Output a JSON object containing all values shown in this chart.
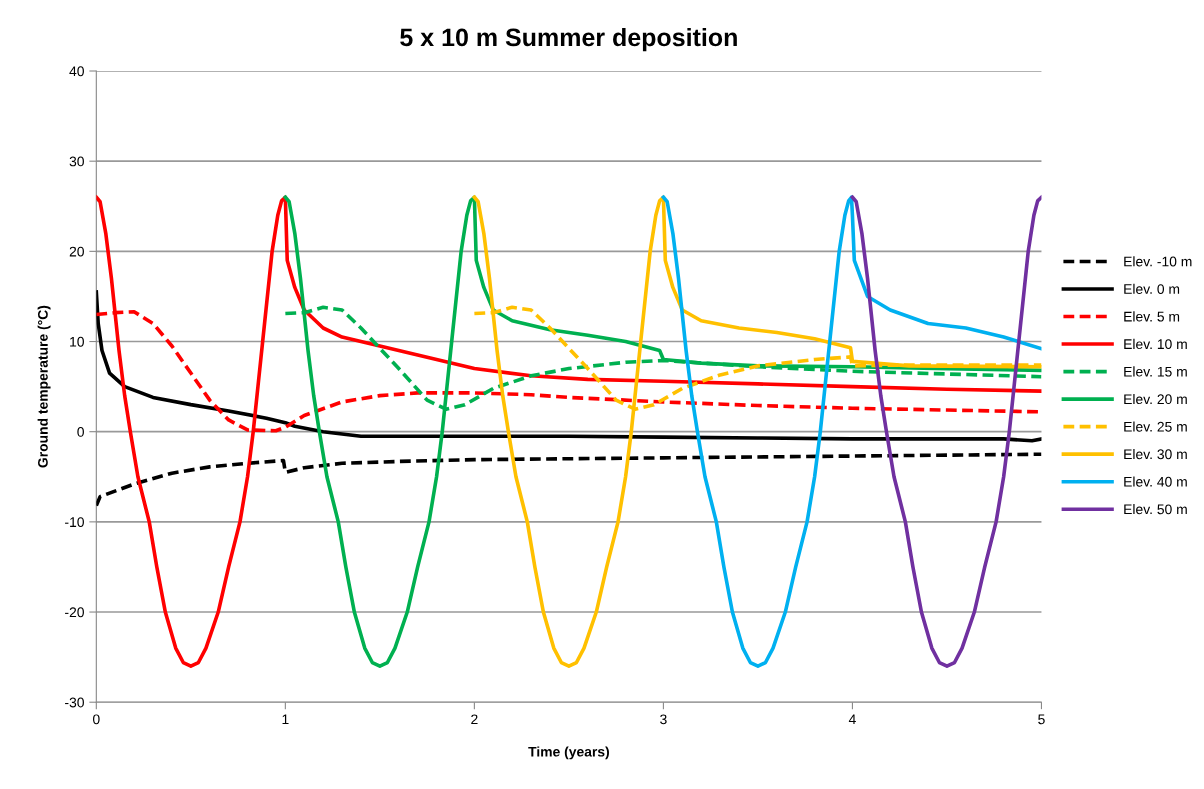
{
  "chart_data": {
    "type": "line",
    "title": "5 x 10 m Summer deposition",
    "xlabel": "Time (years)",
    "ylabel": "Ground temperature (°C)",
    "xlim": [
      0,
      5
    ],
    "xticks": [
      0,
      1,
      2,
      3,
      4,
      5
    ],
    "ylim": [
      -30,
      40
    ],
    "yticks": [
      -30,
      -20,
      -10,
      0,
      10,
      20,
      30,
      40
    ],
    "grid": "y",
    "legend": "right",
    "marker": "none",
    "series": [
      {
        "name": "Elev. -10 m",
        "color": "#000000",
        "line_style": "dashed",
        "x": [
          0,
          0.02,
          0.2,
          0.4,
          0.6,
          0.8,
          0.99,
          1.0,
          1.1,
          1.3,
          1.6,
          2,
          3,
          4,
          5
        ],
        "values": [
          -8.2,
          -7.2,
          -5.8,
          -4.6,
          -3.9,
          -3.5,
          -3.2,
          -4.5,
          -4,
          -3.5,
          -3.3,
          -3.1,
          -2.9,
          -2.7,
          -2.5
        ]
      },
      {
        "name": "Elev. 0 m",
        "color": "#000000",
        "line_style": "solid",
        "x": [
          0,
          0.01,
          0.03,
          0.07,
          0.15,
          0.3,
          0.5,
          0.7,
          0.9,
          1.0,
          1.05,
          1.2,
          1.4,
          2,
          2.5,
          3,
          3.5,
          4,
          4.8,
          4.95,
          5
        ],
        "values": [
          15.5,
          12,
          9,
          6.5,
          5,
          3.8,
          3,
          2.3,
          1.5,
          1,
          0.6,
          0,
          -0.5,
          -0.5,
          -0.5,
          -0.6,
          -0.7,
          -0.8,
          -0.8,
          -1,
          -0.8
        ]
      },
      {
        "name": "Elev. 5 m",
        "color": "#ff0000",
        "line_style": "dashed",
        "x": [
          0,
          0.1,
          0.2,
          0.3,
          0.4,
          0.5,
          0.6,
          0.7,
          0.8,
          0.95,
          1.0,
          1.1,
          1.3,
          1.5,
          1.7,
          2,
          2.3,
          2.5,
          3,
          3.5,
          4,
          4.5,
          5
        ],
        "values": [
          13,
          13.2,
          13.3,
          12,
          9.5,
          6.5,
          3.5,
          1.3,
          0.2,
          0.1,
          0.5,
          1.8,
          3.3,
          4,
          4.3,
          4.3,
          4.1,
          3.8,
          3.3,
          2.9,
          2.6,
          2.4,
          2.2
        ]
      },
      {
        "name": "Elev. 10 m",
        "color": "#ff0000",
        "line_style": "solid",
        "x": [
          0,
          0.02,
          0.05,
          0.08,
          0.1,
          0.12,
          0.15,
          0.18,
          0.22,
          0.28,
          0.32,
          0.365,
          0.42,
          0.46,
          0.5,
          0.54,
          0.58,
          0.645,
          0.7,
          0.76,
          0.8,
          0.83,
          0.855,
          0.88,
          0.93,
          0.96,
          0.98,
          1.0,
          1.01,
          1.05,
          1.1,
          1.2,
          1.3,
          1.5,
          1.7,
          2.0,
          2.3,
          2.6,
          3.0,
          3.5,
          4.0,
          4.5,
          5.0
        ],
        "values": [
          26,
          25.5,
          22,
          17,
          13,
          9,
          4,
          0,
          -5,
          -10,
          -15,
          -20,
          -24,
          -25.6,
          -26,
          -25.6,
          -24,
          -20,
          -15,
          -10,
          -5,
          0,
          5,
          10,
          20,
          24,
          25.6,
          26,
          19,
          16,
          13.5,
          11.5,
          10.5,
          9.5,
          8.5,
          7,
          6.2,
          5.8,
          5.6,
          5.3,
          5.0,
          4.7,
          4.5
        ]
      },
      {
        "name": "Elev. 15 m",
        "color": "#00b050",
        "line_style": "dashed",
        "x": [
          1.0,
          1.1,
          1.2,
          1.3,
          1.4,
          1.6,
          1.75,
          1.85,
          1.95,
          2.1,
          2.3,
          2.5,
          2.8,
          3,
          3.5,
          4,
          4.5,
          5
        ],
        "values": [
          13.1,
          13.2,
          13.8,
          13.5,
          11.5,
          7,
          3.5,
          2.5,
          3,
          4.8,
          6.2,
          7,
          7.7,
          7.9,
          7.2,
          6.7,
          6.4,
          6.1
        ]
      },
      {
        "name": "Elev. 20 m",
        "color": "#00b050",
        "line_style": "solid",
        "x": [
          1,
          1.02,
          1.05,
          1.08,
          1.1,
          1.12,
          1.15,
          1.18,
          1.22,
          1.28,
          1.32,
          1.365,
          1.42,
          1.46,
          1.5,
          1.54,
          1.58,
          1.645,
          1.7,
          1.76,
          1.8,
          1.83,
          1.855,
          1.88,
          1.93,
          1.96,
          1.98,
          2.0,
          2.01,
          2.05,
          2.1,
          2.2,
          2.4,
          2.6,
          2.8,
          2.98,
          3.0,
          3.2,
          3.5,
          4.0,
          4.5,
          5.0
        ],
        "values": [
          26,
          25.5,
          22,
          17,
          13,
          9,
          4,
          0,
          -5,
          -10,
          -15,
          -20,
          -24,
          -25.6,
          -26,
          -25.6,
          -24,
          -20,
          -15,
          -10,
          -5,
          0,
          5,
          10,
          20,
          24,
          25.6,
          26,
          19,
          16,
          13.5,
          12.3,
          11.3,
          10.7,
          10,
          9,
          8,
          7.6,
          7.3,
          7.2,
          7.0,
          6.8
        ]
      },
      {
        "name": "Elev. 25 m",
        "color": "#ffc000",
        "line_style": "dashed",
        "x": [
          2.0,
          2.1,
          2.2,
          2.3,
          2.4,
          2.6,
          2.75,
          2.85,
          2.95,
          3.1,
          3.3,
          3.5,
          3.8,
          3.99,
          4.0,
          4.3,
          5
        ],
        "values": [
          13.1,
          13.2,
          13.8,
          13.5,
          11.5,
          7,
          3.5,
          2.5,
          3,
          4.8,
          6.3,
          7.3,
          8,
          8.3,
          7.3,
          7.4,
          7.4
        ]
      },
      {
        "name": "Elev. 30 m",
        "color": "#ffc000",
        "line_style": "solid",
        "x": [
          2,
          2.02,
          2.05,
          2.08,
          2.1,
          2.12,
          2.15,
          2.18,
          2.22,
          2.28,
          2.32,
          2.365,
          2.42,
          2.46,
          2.5,
          2.54,
          2.58,
          2.645,
          2.7,
          2.76,
          2.8,
          2.83,
          2.855,
          2.88,
          2.93,
          2.96,
          2.98,
          3.0,
          3.01,
          3.05,
          3.1,
          3.2,
          3.4,
          3.6,
          3.8,
          3.99,
          4.0,
          4.3,
          5.0
        ],
        "values": [
          26,
          25.5,
          22,
          17,
          13,
          9,
          4,
          0,
          -5,
          -10,
          -15,
          -20,
          -24,
          -25.6,
          -26,
          -25.6,
          -24,
          -20,
          -15,
          -10,
          -5,
          0,
          5,
          10,
          20,
          24,
          25.6,
          26,
          19,
          16,
          13.5,
          12.3,
          11.5,
          11,
          10.3,
          9.3,
          7.8,
          7.3,
          7.2
        ]
      },
      {
        "name": "Elev. 40 m",
        "color": "#00b0f0",
        "line_style": "solid",
        "x": [
          3,
          3.02,
          3.05,
          3.08,
          3.1,
          3.12,
          3.15,
          3.18,
          3.22,
          3.28,
          3.32,
          3.365,
          3.42,
          3.46,
          3.5,
          3.54,
          3.58,
          3.645,
          3.7,
          3.76,
          3.8,
          3.83,
          3.855,
          3.88,
          3.93,
          3.96,
          3.98,
          3.995,
          4.0,
          4.01,
          4.08,
          4.2,
          4.4,
          4.6,
          4.8,
          5.0
        ],
        "values": [
          26,
          25.5,
          22,
          17,
          13,
          9,
          4,
          0,
          -5,
          -10,
          -15,
          -20,
          -24,
          -25.6,
          -26,
          -25.6,
          -24,
          -20,
          -15,
          -10,
          -5,
          0,
          5,
          10,
          20,
          24,
          25.6,
          26,
          24,
          19,
          15,
          13.5,
          12,
          11.5,
          10.5,
          9.2
        ]
      },
      {
        "name": "Elev. 50 m",
        "color": "#7030a0",
        "line_style": "solid",
        "x": [
          4,
          4.02,
          4.05,
          4.08,
          4.1,
          4.12,
          4.15,
          4.18,
          4.22,
          4.28,
          4.32,
          4.365,
          4.42,
          4.46,
          4.5,
          4.54,
          4.58,
          4.645,
          4.7,
          4.76,
          4.8,
          4.83,
          4.855,
          4.88,
          4.93,
          4.96,
          4.98,
          5.0
        ],
        "values": [
          26,
          25.5,
          22,
          17,
          13,
          9,
          4,
          0,
          -5,
          -10,
          -15,
          -20,
          -24,
          -25.6,
          -26,
          -25.6,
          -24,
          -20,
          -15,
          -10,
          -5,
          0,
          5,
          10,
          20,
          24,
          25.6,
          26
        ]
      }
    ]
  }
}
